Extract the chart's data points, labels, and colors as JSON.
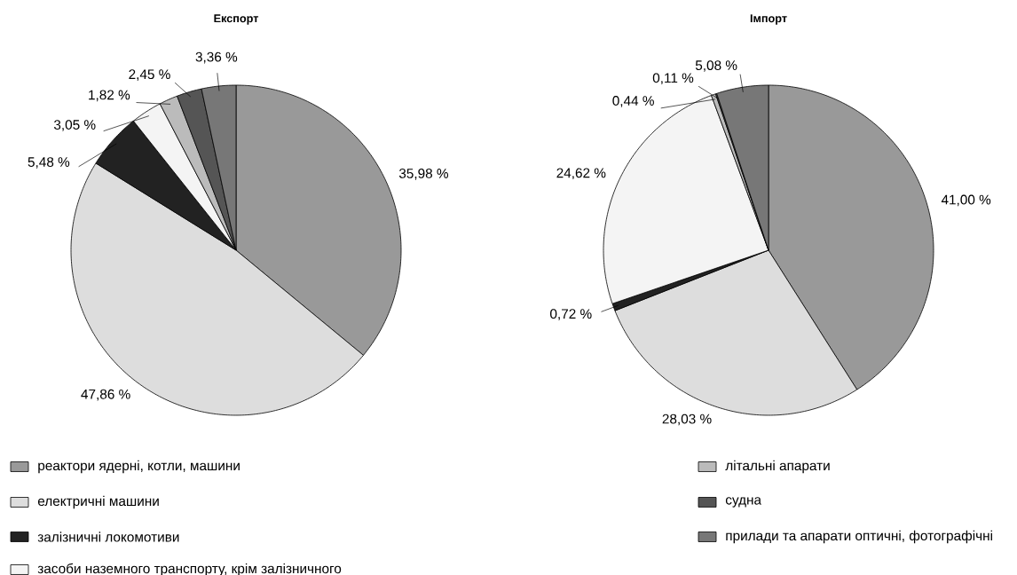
{
  "chart_data": [
    {
      "type": "pie",
      "title": "Експорт",
      "categories": [
        "реактори ядерні, котли, машини",
        "електричні машини",
        "залізничні локомотиви",
        "засоби наземного транспорту, крім залізничного",
        "літальні апарати",
        "судна",
        "прилади та апарати оптичні, фотографічні"
      ],
      "values": [
        35.98,
        47.86,
        5.48,
        3.05,
        1.82,
        2.45,
        3.36
      ],
      "value_labels": [
        "35,98 %",
        "47,86 %",
        "5,48 %",
        "3,05 %",
        "1,82 %",
        "2,45 %",
        "3,36 %"
      ],
      "colors": [
        "#999999",
        "#dddddd",
        "#222222",
        "#f4f4f4",
        "#bbbbbb",
        "#555555",
        "#777777"
      ],
      "legend": "bottom"
    },
    {
      "type": "pie",
      "title": "Імпорт",
      "categories": [
        null,
        null,
        null,
        null,
        null,
        null,
        null
      ],
      "values": [
        41.0,
        28.03,
        0.72,
        24.62,
        0.44,
        0.11,
        5.08
      ],
      "value_labels": [
        "41,00 %",
        "28,03 %",
        "0,72 %",
        "24,62 %",
        "0,44 %",
        "0,11 %",
        "5,08 %"
      ],
      "colors": [
        "#999999",
        "#dddddd",
        "#222222",
        "#f4f4f4",
        "#bbbbbb",
        "#555555",
        "#777777"
      ]
    }
  ]
}
